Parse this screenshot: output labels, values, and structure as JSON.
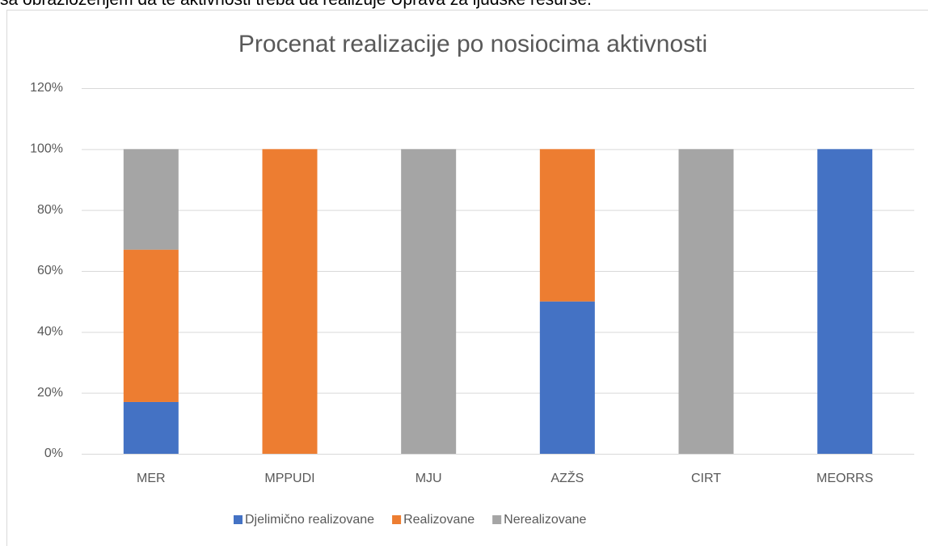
{
  "intro_text": "sa obrazloženjem da te aktivnosti treba da realizuje Uprava za ljudske resurse.",
  "chart_data": {
    "type": "stacked_bar",
    "title": "Procenat realizacije po nosiocima aktivnosti",
    "categories": [
      "MER",
      "MPPUDI",
      "MJU",
      "AZŽS",
      "CIRT",
      "MEORRS"
    ],
    "series": [
      {
        "name": "Djelimično realizovane",
        "color": "#4472c4",
        "values": [
          17,
          0,
          0,
          50,
          0,
          100
        ]
      },
      {
        "name": "Realizovane",
        "color": "#ed7d31",
        "values": [
          50,
          100,
          0,
          50,
          0,
          0
        ]
      },
      {
        "name": "Nerealizovane",
        "color": "#a5a5a5",
        "values": [
          33,
          0,
          100,
          0,
          100,
          0
        ]
      }
    ],
    "ylim": [
      0,
      120
    ],
    "yticks": [
      {
        "value": 0,
        "label": "0%"
      },
      {
        "value": 20,
        "label": "20%"
      },
      {
        "value": 40,
        "label": "40%"
      },
      {
        "value": 60,
        "label": "60%"
      },
      {
        "value": 80,
        "label": "80%"
      },
      {
        "value": 100,
        "label": "100%"
      },
      {
        "value": 120,
        "label": "120%"
      }
    ],
    "grid": true,
    "legend": "bottom"
  }
}
